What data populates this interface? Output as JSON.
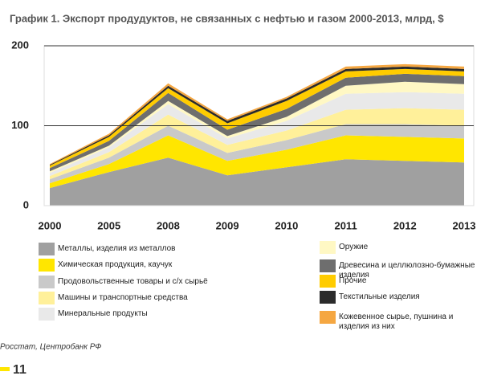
{
  "chart_data": {
    "type": "stacked_area",
    "title": "График 1. Экспорт продудуктов, не связанных с нефтью и газом 2000-2013, млрд, $",
    "categories": [
      "2000",
      "2005",
      "2008",
      "2009",
      "2010",
      "2011",
      "2012",
      "2013"
    ],
    "series": [
      {
        "name": "Металлы, изделия из металлов",
        "color": "#a0a0a0",
        "values": [
          22,
          42,
          60,
          38,
          48,
          58,
          56,
          54
        ]
      },
      {
        "name": "Химическая продукция, каучук",
        "color": "#ffe600",
        "values": [
          6,
          10,
          28,
          18,
          22,
          30,
          30,
          30
        ]
      },
      {
        "name": "Продовольственные товары и с/х сырьё",
        "color": "#c9c9c9",
        "values": [
          5,
          8,
          12,
          10,
          12,
          14,
          16,
          16
        ]
      },
      {
        "name": "Машины и транспортные средства",
        "color": "#fff09a",
        "values": [
          4,
          7,
          14,
          10,
          12,
          18,
          20,
          20
        ]
      },
      {
        "name": "Минеральные продукты",
        "color": "#e9e9e9",
        "values": [
          4,
          6,
          13,
          8,
          12,
          20,
          20,
          20
        ]
      },
      {
        "name": "Оружие",
        "color": "#fff8c4",
        "values": [
          2,
          2,
          4,
          3,
          5,
          10,
          13,
          12
        ]
      },
      {
        "name": "Древесина и целлюлозно-бумажные изделия",
        "color": "#6e6e6e",
        "values": [
          4,
          6,
          10,
          8,
          10,
          10,
          10,
          10
        ]
      },
      {
        "name": "Прочие",
        "color": "#ffcc00",
        "values": [
          3,
          5,
          6,
          8,
          10,
          8,
          6,
          6
        ]
      },
      {
        "name": "Текстильные изделия",
        "color": "#2b2b2b",
        "values": [
          1,
          2,
          3,
          3,
          3,
          3,
          3,
          3
        ]
      },
      {
        "name": "Кожевенное сырье, пушнина и изделия из них",
        "color": "#f5a742",
        "values": [
          1,
          2,
          3,
          2,
          2,
          3,
          3,
          3
        ]
      }
    ],
    "ylim": [
      0,
      200
    ],
    "yticks": [
      0,
      100,
      200
    ],
    "grid": true
  },
  "source": "Росстат, Центробанк РФ",
  "page_number": "11"
}
